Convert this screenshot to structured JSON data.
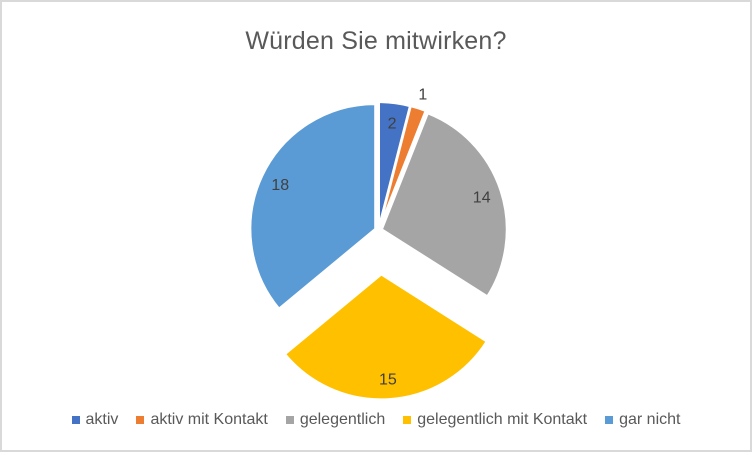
{
  "chart_data": {
    "type": "pie",
    "title": "Würden Sie mitwirken?",
    "categories": [
      "aktiv",
      "aktiv mit Kontakt",
      "gelegentlich",
      "gelegentlich mit Kontakt",
      "gar nicht"
    ],
    "values": [
      2,
      1,
      14,
      15,
      18
    ],
    "total": 50,
    "colors": [
      "#4472C4",
      "#ED7D31",
      "#A5A5A5",
      "#FFC000",
      "#5B9BD5"
    ],
    "data_labels": [
      "2",
      "1",
      "14",
      "15",
      "18"
    ],
    "label_placement": [
      "inside",
      "outside",
      "inside",
      "inside",
      "inside"
    ],
    "exploded_slice": "gelegentlich mit Kontakt",
    "start_angle_deg": 0,
    "direction": "clockwise",
    "legend_position": "bottom",
    "legend_labels": [
      "aktiv",
      "aktiv mit Kontakt",
      "gelegentlich",
      "gelegentlich mit Kontakt",
      "gar nicht"
    ],
    "style": {
      "title_color": "#595959",
      "legend_text_color": "#595959",
      "data_label_color": "#404040",
      "slice_border_color": "#ffffff",
      "frame_border_color": "#d9d9d9",
      "background_color": "#ffffff"
    }
  }
}
